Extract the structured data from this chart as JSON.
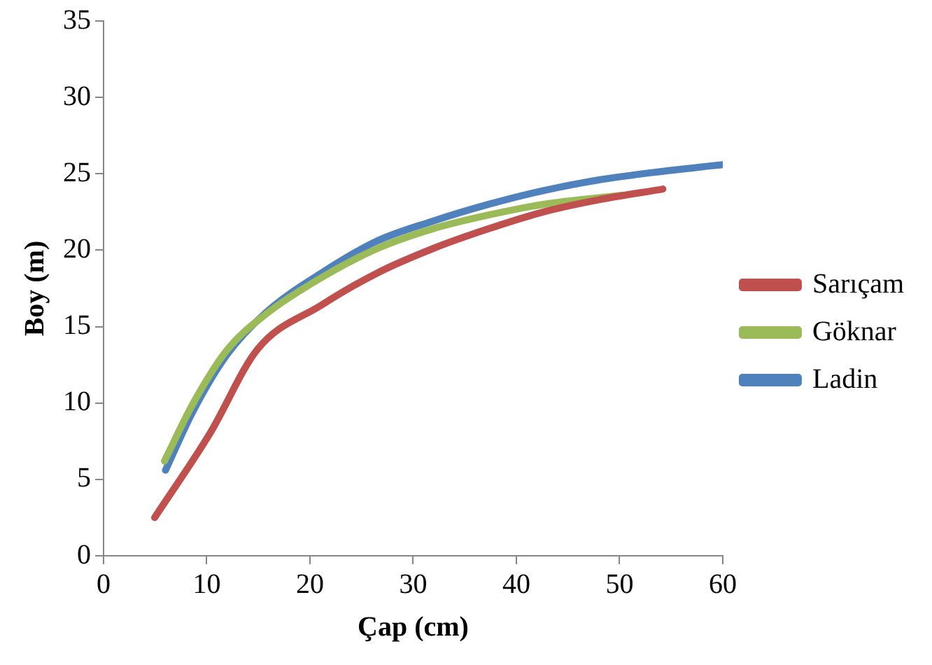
{
  "chart_data": {
    "type": "line",
    "xlabel": "Çap (cm)",
    "ylabel": "Boy (m)",
    "xlim": [
      0,
      60
    ],
    "xticks": [
      0,
      10,
      20,
      30,
      40,
      50,
      60
    ],
    "ylim": [
      0,
      35
    ],
    "yticks": [
      0,
      5,
      10,
      15,
      20,
      25,
      30,
      35
    ],
    "grid": false,
    "legend": "right",
    "marker": "none",
    "line_style": "solid",
    "series": [
      {
        "name": "Sarıçam",
        "color": "#c0504d",
        "x": [
          4.95,
          10.3,
          14.9,
          21.1,
          26.5,
          31.9,
          37.3,
          42.6,
          48,
          54.2
        ],
        "values": [
          2.5,
          8,
          13.5,
          16.4,
          18.5,
          20.1,
          21.4,
          22.5,
          23.3,
          24
        ]
      },
      {
        "name": "Göknar",
        "color": "#9bbb59",
        "x": [
          5.9,
          8.7,
          12,
          15.7,
          21.1,
          26.5,
          31.9,
          37.3,
          42.6,
          50.2
        ],
        "values": [
          6.2,
          10,
          13.5,
          15.8,
          18.2,
          20.1,
          21.4,
          22.3,
          23,
          23.6
        ]
      },
      {
        "name": "Ladin",
        "color": "#4f81bd",
        "x": [
          6,
          8.7,
          12,
          15.7,
          21.1,
          26.5,
          31.9,
          37.3,
          42.6,
          48,
          53.4,
          60
        ],
        "values": [
          5.6,
          9.5,
          13.2,
          15.9,
          18.5,
          20.6,
          21.9,
          23,
          23.9,
          24.6,
          25.1,
          25.6
        ]
      }
    ]
  }
}
